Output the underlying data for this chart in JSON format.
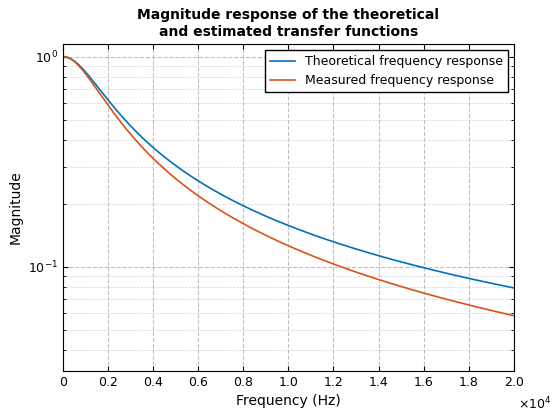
{
  "title": "Magnitude response of the theoretical\nand estimated transfer functions",
  "xlabel": "Frequency (Hz)",
  "ylabel": "Magnitude",
  "xlim": [
    0,
    20000
  ],
  "ylim_log": [
    0.032,
    1.15
  ],
  "fc_theoretical": 1592,
  "fc_measured": 1592,
  "n_theoretical": 1.0,
  "n_measured": 1.12,
  "theoretical_color": "#0072BD",
  "measured_color": "#D95319",
  "theoretical_label": "Theoretical frequency response",
  "measured_label": "Measured frequency response",
  "legend_loc": "upper right",
  "grid_color": "#c0c0c0",
  "grid_style": "--",
  "background_color": "#ffffff",
  "fig_bg": "#ffffff",
  "title_fontsize": 10,
  "axis_fontsize": 10,
  "tick_fontsize": 9,
  "legend_fontsize": 9
}
